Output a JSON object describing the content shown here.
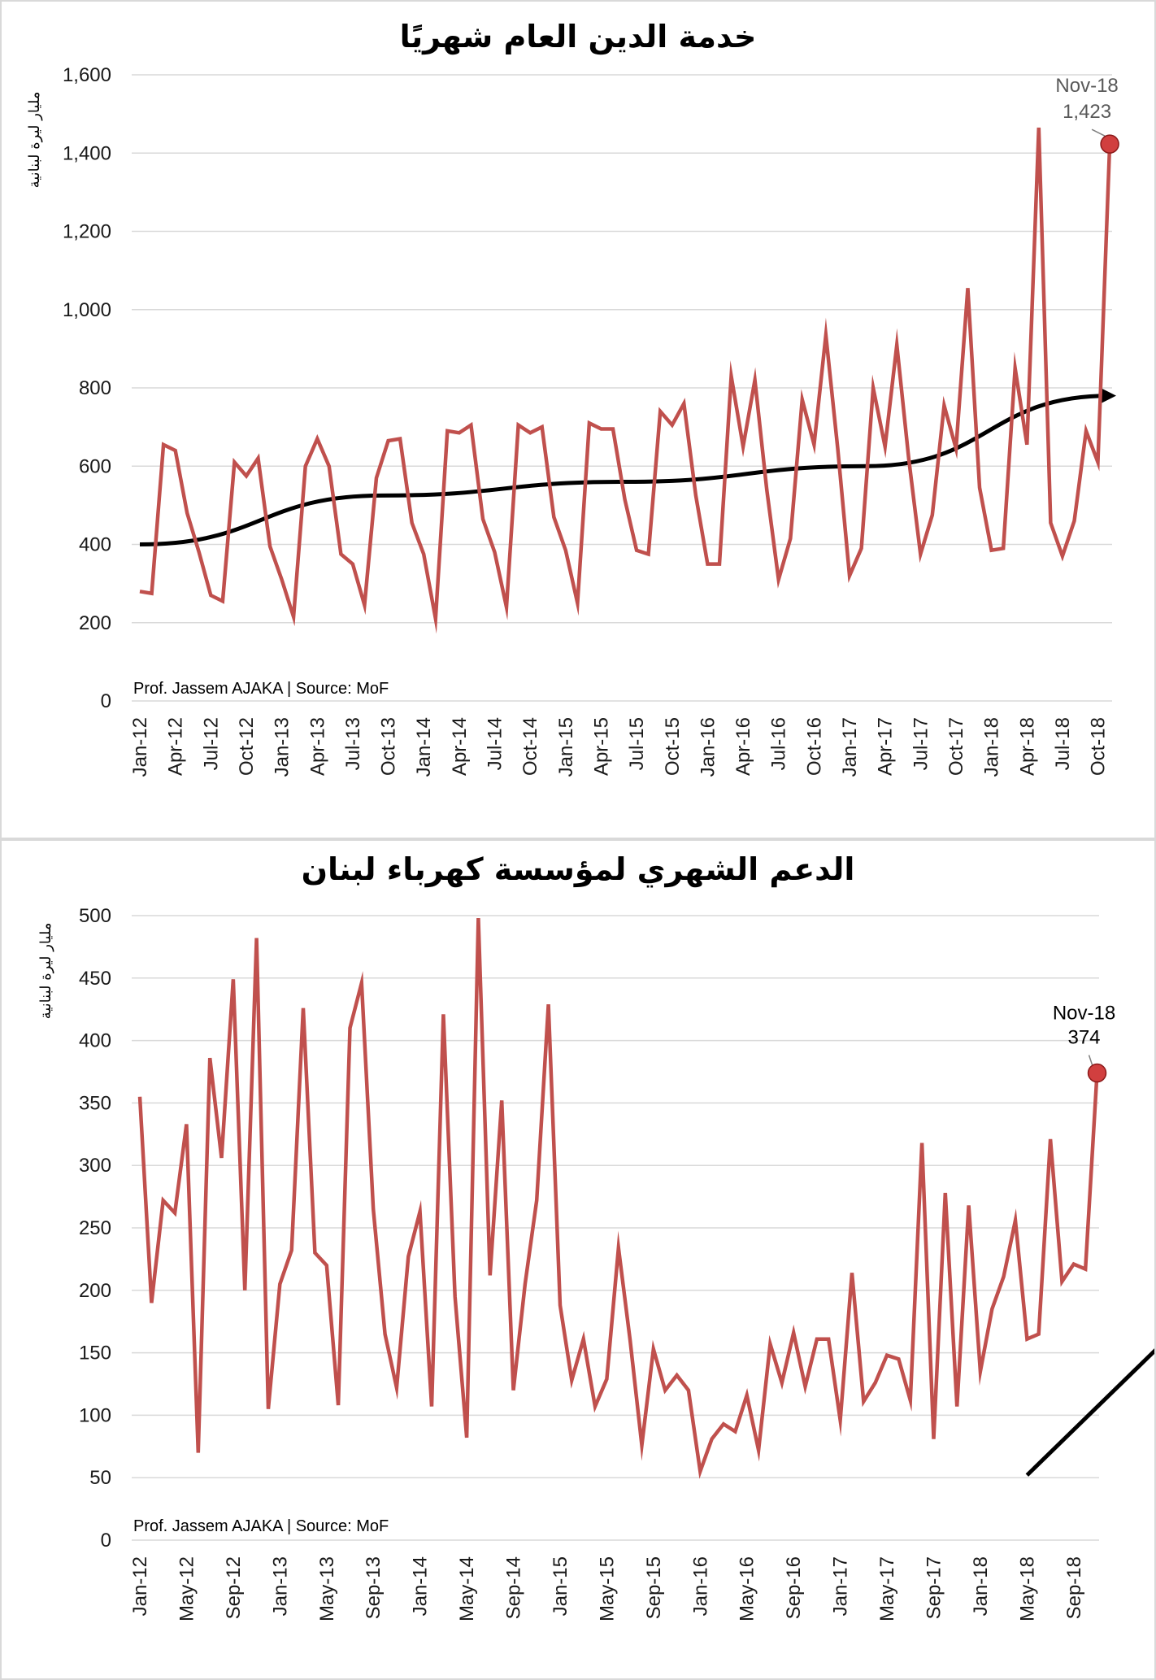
{
  "chart_data": [
    {
      "type": "line",
      "title": "خدمة الدين العام شهريًا",
      "ylabel": "مليار ليرة لبنانية",
      "credit": "Prof. Jassem AJAKA | Source: MoF",
      "ylim": [
        0,
        1600
      ],
      "yticks": [
        "0",
        "200",
        "400",
        "600",
        "800",
        "1,000",
        "1,200",
        "1,400",
        "1,600"
      ],
      "ytick_values": [
        0,
        200,
        400,
        600,
        800,
        1000,
        1200,
        1400,
        1600
      ],
      "xtick_labels": [
        "Jan-12",
        "Apr-12",
        "Jul-12",
        "Oct-12",
        "Jan-13",
        "Apr-13",
        "Jul-13",
        "Oct-13",
        "Jan-14",
        "Apr-14",
        "Jul-14",
        "Oct-14",
        "Jan-15",
        "Apr-15",
        "Jul-15",
        "Oct-15",
        "Jan-16",
        "Apr-16",
        "Jul-16",
        "Oct-16",
        "Jan-17",
        "Apr-17",
        "Jul-17",
        "Oct-17",
        "Jan-18",
        "Apr-18",
        "Jul-18",
        "Oct-18"
      ],
      "xtick_step": 3,
      "series": [
        {
          "name": "Monthly debt service",
          "color": "#c0504d",
          "values": [
            280,
            275,
            655,
            640,
            480,
            380,
            270,
            255,
            610,
            575,
            620,
            395,
            310,
            215,
            600,
            670,
            600,
            375,
            350,
            245,
            570,
            665,
            670,
            455,
            375,
            210,
            690,
            685,
            705,
            465,
            380,
            240,
            705,
            685,
            700,
            470,
            385,
            250,
            710,
            695,
            695,
            515,
            385,
            375,
            740,
            705,
            760,
            525,
            350,
            350,
            830,
            650,
            820,
            540,
            310,
            415,
            770,
            655,
            935,
            645,
            320,
            390,
            800,
            650,
            910,
            620,
            375,
            475,
            755,
            645,
            1055,
            545,
            385,
            390,
            850,
            655,
            1465,
            455,
            370,
            460,
            690,
            610,
            1423
          ]
        }
      ],
      "trend": {
        "name": "trend",
        "color": "#000000",
        "values": [
          400,
          525,
          560,
          600,
          780
        ]
      },
      "annotation": {
        "label": "Nov-18",
        "value": "1,423",
        "point_value": 1423
      }
    },
    {
      "type": "line",
      "title": "الدعم الشهري لمؤسسة كهرباء لبنان",
      "ylabel": "مليار ليرة لبنانية",
      "credit": "Prof. Jassem AJAKA | Source: MoF",
      "ylim": [
        0,
        500
      ],
      "yticks": [
        "0",
        "50",
        "100",
        "150",
        "200",
        "250",
        "300",
        "350",
        "400",
        "450",
        "500"
      ],
      "ytick_values": [
        0,
        50,
        100,
        150,
        200,
        250,
        300,
        350,
        400,
        450,
        500
      ],
      "xtick_labels": [
        "Jan-12",
        "May-12",
        "Sep-12",
        "Jan-13",
        "May-13",
        "Sep-13",
        "Jan-14",
        "May-14",
        "Sep-14",
        "Jan-15",
        "May-15",
        "Sep-15",
        "Jan-16",
        "May-16",
        "Sep-16",
        "Jan-17",
        "May-17",
        "Sep-17",
        "Jan-18",
        "May-18",
        "Sep-18"
      ],
      "xtick_step": 4,
      "series": [
        {
          "name": "Monthly EDL transfer",
          "color": "#c0504d",
          "values": [
            355,
            190,
            272,
            262,
            333,
            70,
            386,
            306,
            449,
            200,
            482,
            105,
            205,
            232,
            426,
            230,
            220,
            108,
            410,
            446,
            265,
            165,
            122,
            227,
            263,
            107,
            421,
            195,
            82,
            498,
            212,
            352,
            120,
            205,
            272,
            429,
            188,
            128,
            161,
            107,
            129,
            234,
            160,
            76,
            153,
            120,
            132,
            120,
            55,
            81,
            93,
            87,
            116,
            72,
            157,
            126,
            166,
            123,
            161,
            161,
            96,
            214,
            111,
            126,
            148,
            145,
            112,
            318,
            81,
            278,
            107,
            268,
            135,
            185,
            211,
            256,
            161,
            165,
            321,
            207,
            221,
            217,
            374
          ]
        }
      ],
      "trend_arrow": {
        "from": [
          76,
          52
        ],
        "to": [
          95,
          225
        ],
        "color": "#000000"
      },
      "annotation": {
        "label": "Nov-18",
        "value": "374",
        "point_value": 374
      }
    }
  ]
}
